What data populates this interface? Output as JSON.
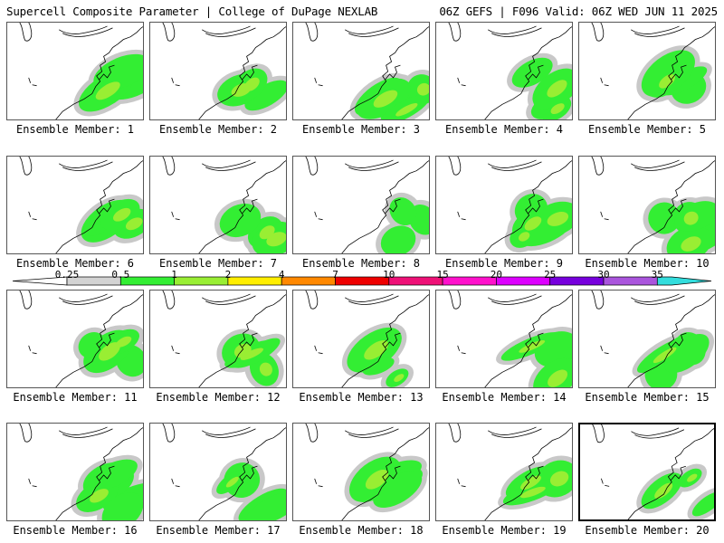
{
  "header": {
    "left": "Supercell Composite Parameter | College of DuPage NEXLAB",
    "right": "06Z GEFS | F096 Valid: 06Z WED JUN 11 2025"
  },
  "colors": {
    "gray": "#c8c8c8",
    "green": "#33ee33",
    "lightgreen": "#99ee33",
    "coast": "#000000"
  },
  "colorbar": {
    "thresholds": [
      "0.25",
      "0.5",
      "1",
      "2",
      "4",
      "7",
      "10",
      "15",
      "20",
      "25",
      "30",
      "35"
    ],
    "colors": [
      "#d3d3d3",
      "#33ee33",
      "#99ee33",
      "#ffee00",
      "#ff8800",
      "#ee0000",
      "#ee1177",
      "#ff11cc",
      "#dd00ff",
      "#7700dd",
      "#aa55dd",
      "#33dddd"
    ]
  },
  "members": [
    {
      "label": "Ensemble Member: 1",
      "selected": false
    },
    {
      "label": "Ensemble Member: 2",
      "selected": false
    },
    {
      "label": "Ensemble Member: 3",
      "selected": false
    },
    {
      "label": "Ensemble Member: 4",
      "selected": false
    },
    {
      "label": "Ensemble Member: 5",
      "selected": false
    },
    {
      "label": "Ensemble Member: 6",
      "selected": false
    },
    {
      "label": "Ensemble Member: 7",
      "selected": false
    },
    {
      "label": "Ensemble Member: 8",
      "selected": false
    },
    {
      "label": "Ensemble Member: 9",
      "selected": false
    },
    {
      "label": "Ensemble Member: 10",
      "selected": false
    },
    {
      "label": "Ensemble Member: 11",
      "selected": false
    },
    {
      "label": "Ensemble Member: 12",
      "selected": false
    },
    {
      "label": "Ensemble Member: 13",
      "selected": false
    },
    {
      "label": "Ensemble Member: 14",
      "selected": false
    },
    {
      "label": "Ensemble Member: 15",
      "selected": false
    },
    {
      "label": "Ensemble Member: 16",
      "selected": false
    },
    {
      "label": "Ensemble Member: 17",
      "selected": false
    },
    {
      "label": "Ensemble Member: 18",
      "selected": false
    },
    {
      "label": "Ensemble Member: 19",
      "selected": false
    },
    {
      "label": "Ensemble Member: 20",
      "selected": true
    }
  ]
}
